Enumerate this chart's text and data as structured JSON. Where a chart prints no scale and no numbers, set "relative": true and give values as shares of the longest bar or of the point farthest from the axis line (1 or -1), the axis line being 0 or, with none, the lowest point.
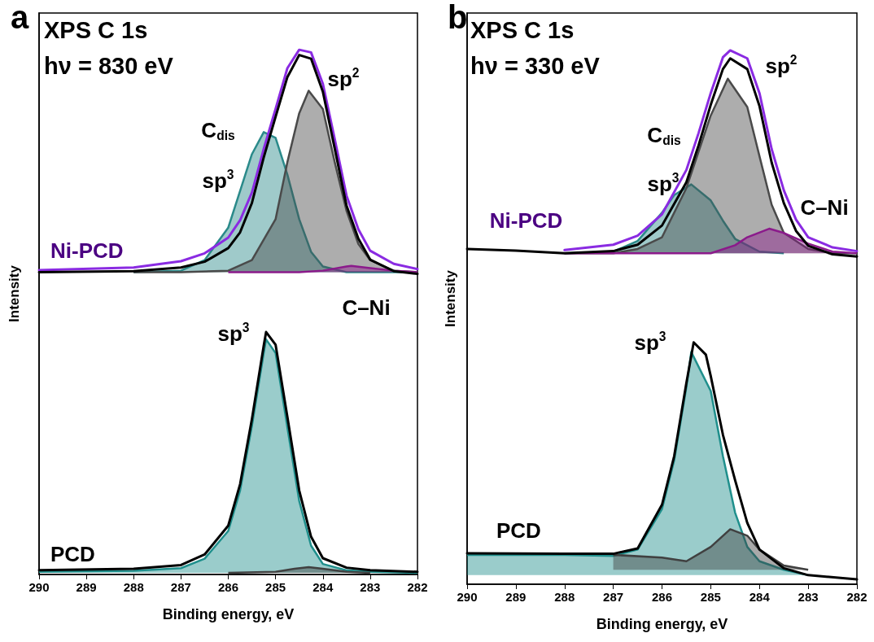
{
  "chart_data": [
    {
      "type": "line",
      "title": "a",
      "xlabel": "Binding energy, eV",
      "ylabel": "Intensity",
      "relative": true,
      "xlim": [
        290,
        282
      ],
      "xticks": [
        290,
        289,
        288,
        287,
        286,
        285,
        284,
        283,
        282
      ],
      "annotations": [
        "XPS C 1s",
        "hν = 830 eV",
        "sp$^{2}$",
        "C$_{dis}$",
        "sp$^{3}$",
        "C–Ni",
        "sp$^{3}$"
      ],
      "series": [
        {
          "type": "area",
          "color": "#2a8a8a",
          "x": [
            288,
            287,
            286.5,
            286,
            285.75,
            285.5,
            285.25,
            285,
            284.75,
            284.5,
            284.25,
            284,
            283.5,
            283,
            282
          ],
          "values": [
            0.576,
            0.579,
            0.599,
            0.661,
            0.731,
            0.801,
            0.843,
            0.832,
            0.762,
            0.677,
            0.615,
            0.587,
            0.576,
            0.576,
            0.576
          ]
        },
        {
          "type": "area",
          "color": "#4a4a4a",
          "x": [
            288,
            287,
            286,
            285.5,
            285,
            284.75,
            284.5,
            284.3,
            284,
            283.75,
            283.5,
            283.25,
            283,
            282.5,
            282
          ],
          "values": [
            0.576,
            0.576,
            0.579,
            0.599,
            0.677,
            0.786,
            0.879,
            0.922,
            0.887,
            0.786,
            0.693,
            0.63,
            0.599,
            0.579,
            0.576
          ]
        },
        {
          "type": "area",
          "color": "#8b1a8b",
          "x": [
            286,
            285,
            284.5,
            284,
            283.5,
            283.4,
            283,
            282.5,
            282
          ],
          "values": [
            0.576,
            0.576,
            0.576,
            0.579,
            0.587,
            0.588,
            0.584,
            0.579,
            0.576
          ]
        },
        {
          "type": "line",
          "name": "Ni-PCD",
          "color": "#8a2be2",
          "x": [
            290,
            288,
            287,
            286.5,
            286,
            285.75,
            285.5,
            285.25,
            285,
            284.75,
            284.5,
            284.25,
            284,
            283.75,
            283.5,
            283.25,
            283,
            282.5,
            282
          ],
          "values": [
            0.58,
            0.585,
            0.597,
            0.612,
            0.642,
            0.675,
            0.728,
            0.811,
            0.887,
            0.965,
            1,
            0.995,
            0.935,
            0.83,
            0.722,
            0.658,
            0.617,
            0.592,
            0.582
          ]
        },
        {
          "type": "line",
          "color": "#000000",
          "x": [
            290,
            288,
            287,
            286.5,
            286,
            285.75,
            285.5,
            285.25,
            285,
            284.75,
            284.5,
            284.25,
            284,
            283.75,
            283.5,
            283.25,
            283,
            282.5,
            282
          ],
          "values": [
            0.576,
            0.578,
            0.585,
            0.596,
            0.622,
            0.652,
            0.708,
            0.795,
            0.872,
            0.948,
            0.99,
            0.983,
            0.92,
            0.812,
            0.703,
            0.64,
            0.6,
            0.578,
            0.573
          ]
        },
        {
          "type": "area",
          "color": "#1f8f8c",
          "x": [
            290,
            288,
            287,
            286.5,
            286,
            285.75,
            285.5,
            285.25,
            285.2,
            285,
            284.75,
            284.5,
            284.25,
            284,
            283.5,
            283,
            282
          ],
          "values": [
            0.005,
            0.007,
            0.012,
            0.03,
            0.083,
            0.16,
            0.283,
            0.422,
            0.448,
            0.422,
            0.28,
            0.14,
            0.055,
            0.02,
            0.008,
            0.005,
            0.003
          ]
        },
        {
          "type": "area",
          "color": "#404040",
          "x": [
            286,
            285,
            284.6,
            284.3,
            284,
            283.5,
            283
          ],
          "values": [
            0.003,
            0.005,
            0.011,
            0.014,
            0.011,
            0.005,
            0.003
          ]
        },
        {
          "type": "line",
          "name": "PCD",
          "color": "#000000",
          "x": [
            290,
            288,
            287,
            286.5,
            286,
            285.75,
            285.5,
            285.25,
            285.2,
            285,
            284.75,
            284.5,
            284.25,
            284,
            283.5,
            283,
            282
          ],
          "values": [
            0.008,
            0.011,
            0.018,
            0.038,
            0.093,
            0.172,
            0.296,
            0.436,
            0.462,
            0.438,
            0.3,
            0.16,
            0.072,
            0.031,
            0.013,
            0.008,
            0.005
          ]
        }
      ]
    },
    {
      "type": "line",
      "title": "b",
      "xlabel": "Binding energy, eV",
      "ylabel": "Intensity",
      "relative": true,
      "xlim": [
        290,
        282
      ],
      "xticks": [
        290,
        289,
        288,
        287,
        286,
        285,
        284,
        283,
        282
      ],
      "annotations": [
        "XPS C 1s",
        "hν = 330 eV",
        "sp$^{2}$",
        "C$_{dis}$",
        "sp$^{3}$",
        "C–Ni",
        "sp$^{3}$"
      ],
      "series": [
        {
          "type": "area",
          "color": "#2a8a8a",
          "x": [
            288,
            287,
            286.5,
            286,
            285.75,
            285.4,
            285,
            284.75,
            284.5,
            284,
            283.5
          ],
          "values": [
            0.62,
            0.623,
            0.643,
            0.696,
            0.729,
            0.749,
            0.719,
            0.681,
            0.647,
            0.623,
            0.62
          ]
        },
        {
          "type": "area",
          "color": "#4a4a4a",
          "x": [
            288,
            287,
            286.5,
            286,
            285.5,
            285,
            284.65,
            284.25,
            284,
            283.75,
            283.5,
            283,
            282.5,
            282
          ],
          "values": [
            0.62,
            0.62,
            0.628,
            0.65,
            0.742,
            0.878,
            0.947,
            0.894,
            0.802,
            0.711,
            0.658,
            0.628,
            0.62,
            0.62
          ]
        },
        {
          "type": "area",
          "color": "#8b1a8b",
          "x": [
            288,
            285,
            284.5,
            284.25,
            283.8,
            283.5,
            283,
            282.5,
            282
          ],
          "values": [
            0.62,
            0.62,
            0.635,
            0.65,
            0.666,
            0.658,
            0.638,
            0.623,
            0.62
          ]
        },
        {
          "type": "line",
          "name": "Ni-PCD",
          "color": "#8a2be2",
          "x": [
            288,
            287,
            286.5,
            286,
            285.5,
            285.25,
            285,
            284.75,
            284.6,
            284.25,
            284,
            283.75,
            283.5,
            283.25,
            283,
            282.5,
            282
          ],
          "values": [
            0.626,
            0.636,
            0.653,
            0.693,
            0.776,
            0.845,
            0.92,
            0.987,
            1,
            0.985,
            0.92,
            0.815,
            0.738,
            0.683,
            0.65,
            0.631,
            0.624
          ]
        },
        {
          "type": "line",
          "color": "#000000",
          "x": [
            290,
            289,
            288,
            287,
            286.5,
            286,
            285.5,
            285.25,
            285,
            284.75,
            284.6,
            284.25,
            284,
            283.75,
            283.5,
            283.25,
            283,
            282.5,
            282
          ],
          "values": [
            0.628,
            0.625,
            0.62,
            0.624,
            0.636,
            0.672,
            0.753,
            0.822,
            0.898,
            0.965,
            0.985,
            0.965,
            0.896,
            0.79,
            0.714,
            0.662,
            0.634,
            0.618,
            0.614
          ]
        },
        {
          "type": "area",
          "color": "#1f8f8c",
          "x": [
            290,
            288,
            287,
            286.5,
            286,
            285.75,
            285.5,
            285.4,
            285,
            284.75,
            284.5,
            284.25,
            284,
            283.5,
            283
          ],
          "values": [
            0.055,
            0.055,
            0.053,
            0.065,
            0.141,
            0.232,
            0.369,
            0.435,
            0.362,
            0.24,
            0.134,
            0.07,
            0.043,
            0.027,
            0.017
          ]
        },
        {
          "type": "area",
          "color": "#404040",
          "x": [
            287,
            286,
            285.5,
            285,
            284.6,
            284.25,
            284,
            283.5,
            283
          ],
          "values": [
            0.055,
            0.05,
            0.043,
            0.07,
            0.103,
            0.091,
            0.065,
            0.035,
            0.027
          ]
        },
        {
          "type": "line",
          "name": "PCD",
          "color": "#000000",
          "x": [
            290,
            288,
            287,
            286.5,
            286,
            285.75,
            285.5,
            285.35,
            285.1,
            285,
            284.75,
            284.5,
            284.25,
            284,
            283.5,
            283,
            282
          ],
          "values": [
            0.058,
            0.057,
            0.057,
            0.067,
            0.149,
            0.24,
            0.377,
            0.453,
            0.43,
            0.39,
            0.28,
            0.195,
            0.115,
            0.065,
            0.03,
            0.017,
            0.009
          ]
        }
      ]
    }
  ]
}
